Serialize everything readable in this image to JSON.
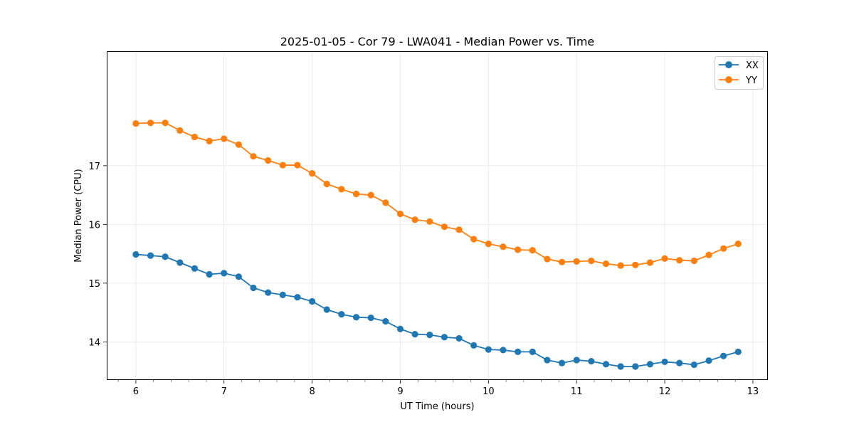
{
  "chart_data": {
    "type": "line",
    "title": "2025-01-05 - Cor 79 - LWA041 - Median Power vs. Time",
    "xlabel": "UT Time (hours)",
    "ylabel": "Median Power (CPU)",
    "xlim": [
      5.67,
      13.17
    ],
    "ylim": [
      13.35,
      18.95
    ],
    "xticks": [
      6,
      7,
      8,
      9,
      10,
      11,
      12,
      13
    ],
    "xtick_labels": [
      "6",
      "7",
      "8",
      "9",
      "10",
      "11",
      "12",
      "13"
    ],
    "yticks": [
      14,
      15,
      16,
      17
    ],
    "ytick_labels": [
      "14",
      "15",
      "16",
      "17"
    ],
    "grid": true,
    "legend_position": "top-right",
    "x": [
      6.0,
      6.1667,
      6.3333,
      6.5,
      6.6667,
      6.8333,
      7.0,
      7.1667,
      7.3333,
      7.5,
      7.6667,
      7.8333,
      8.0,
      8.1667,
      8.3333,
      8.5,
      8.6667,
      8.8333,
      9.0,
      9.1667,
      9.3333,
      9.5,
      9.6667,
      9.8333,
      10.0,
      10.1667,
      10.3333,
      10.5,
      10.6667,
      10.8333,
      11.0,
      11.1667,
      11.3333,
      11.5,
      11.6667,
      11.8333,
      12.0,
      12.1667,
      12.3333,
      12.5,
      12.6667,
      12.8333
    ],
    "series": [
      {
        "name": "XX",
        "color": "#1f77b4",
        "values": [
          15.49,
          15.47,
          15.45,
          15.35,
          15.25,
          15.15,
          15.17,
          15.11,
          14.92,
          14.84,
          14.8,
          14.76,
          14.69,
          14.55,
          14.47,
          14.42,
          14.41,
          14.35,
          14.22,
          14.13,
          14.12,
          14.08,
          14.06,
          13.94,
          13.87,
          13.86,
          13.83,
          13.83,
          13.69,
          13.64,
          13.69,
          13.67,
          13.62,
          13.58,
          13.58,
          13.62,
          13.66,
          13.64,
          13.61,
          13.68,
          13.76,
          13.83
        ]
      },
      {
        "name": "YY",
        "color": "#ff7f0e",
        "values": [
          17.72,
          17.73,
          17.73,
          17.6,
          17.49,
          17.42,
          17.46,
          17.36,
          17.16,
          17.09,
          17.01,
          17.01,
          16.87,
          16.69,
          16.6,
          16.52,
          16.5,
          16.37,
          16.18,
          16.08,
          16.05,
          15.96,
          15.91,
          15.75,
          15.67,
          15.62,
          15.57,
          15.56,
          15.41,
          15.36,
          15.37,
          15.38,
          15.33,
          15.3,
          15.31,
          15.35,
          15.42,
          15.39,
          15.38,
          15.48,
          15.59,
          15.67
        ]
      }
    ]
  }
}
